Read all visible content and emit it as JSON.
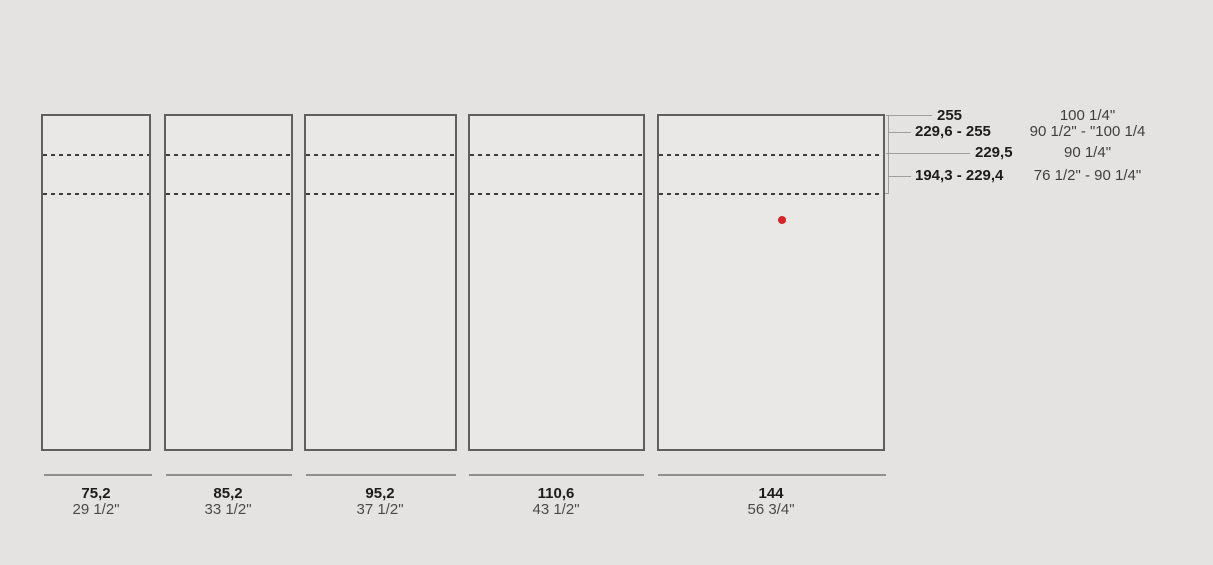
{
  "diagram": {
    "type": "furniture-dimension-drawing",
    "panel_count": 5
  },
  "units": [
    {
      "width_cm": "75,2",
      "width_in": "29 1/2\""
    },
    {
      "width_cm": "85,2",
      "width_in": "33 1/2\""
    },
    {
      "width_cm": "95,2",
      "width_in": "37 1/2\""
    },
    {
      "width_cm": "110,6",
      "width_in": "43 1/2\""
    },
    {
      "width_cm": "144",
      "width_in": "56 3/4\""
    }
  ],
  "height_dims": [
    {
      "cm": "255",
      "inch": "100 1/4\""
    },
    {
      "cm": "229,6 - 255",
      "inch": "90 1/2\" - \"100 1/4"
    },
    {
      "cm": "229,5",
      "inch": "90 1/4\""
    },
    {
      "cm": "194,3 - 229,4",
      "inch": "76 1/2\" - 90 1/4\""
    }
  ],
  "colors": {
    "background": "#e4e3e1",
    "panel_fill": "#e9e8e6",
    "panel_outline": "#5f5f5f",
    "dashed_line": "#3d3d3d",
    "dimension_line": "#8f8f8f",
    "leader_line": "#9e9e9e",
    "text_dark": "#1c1c1c",
    "text_gray": "#4a4a4a",
    "marker_red": "#d9232a"
  }
}
